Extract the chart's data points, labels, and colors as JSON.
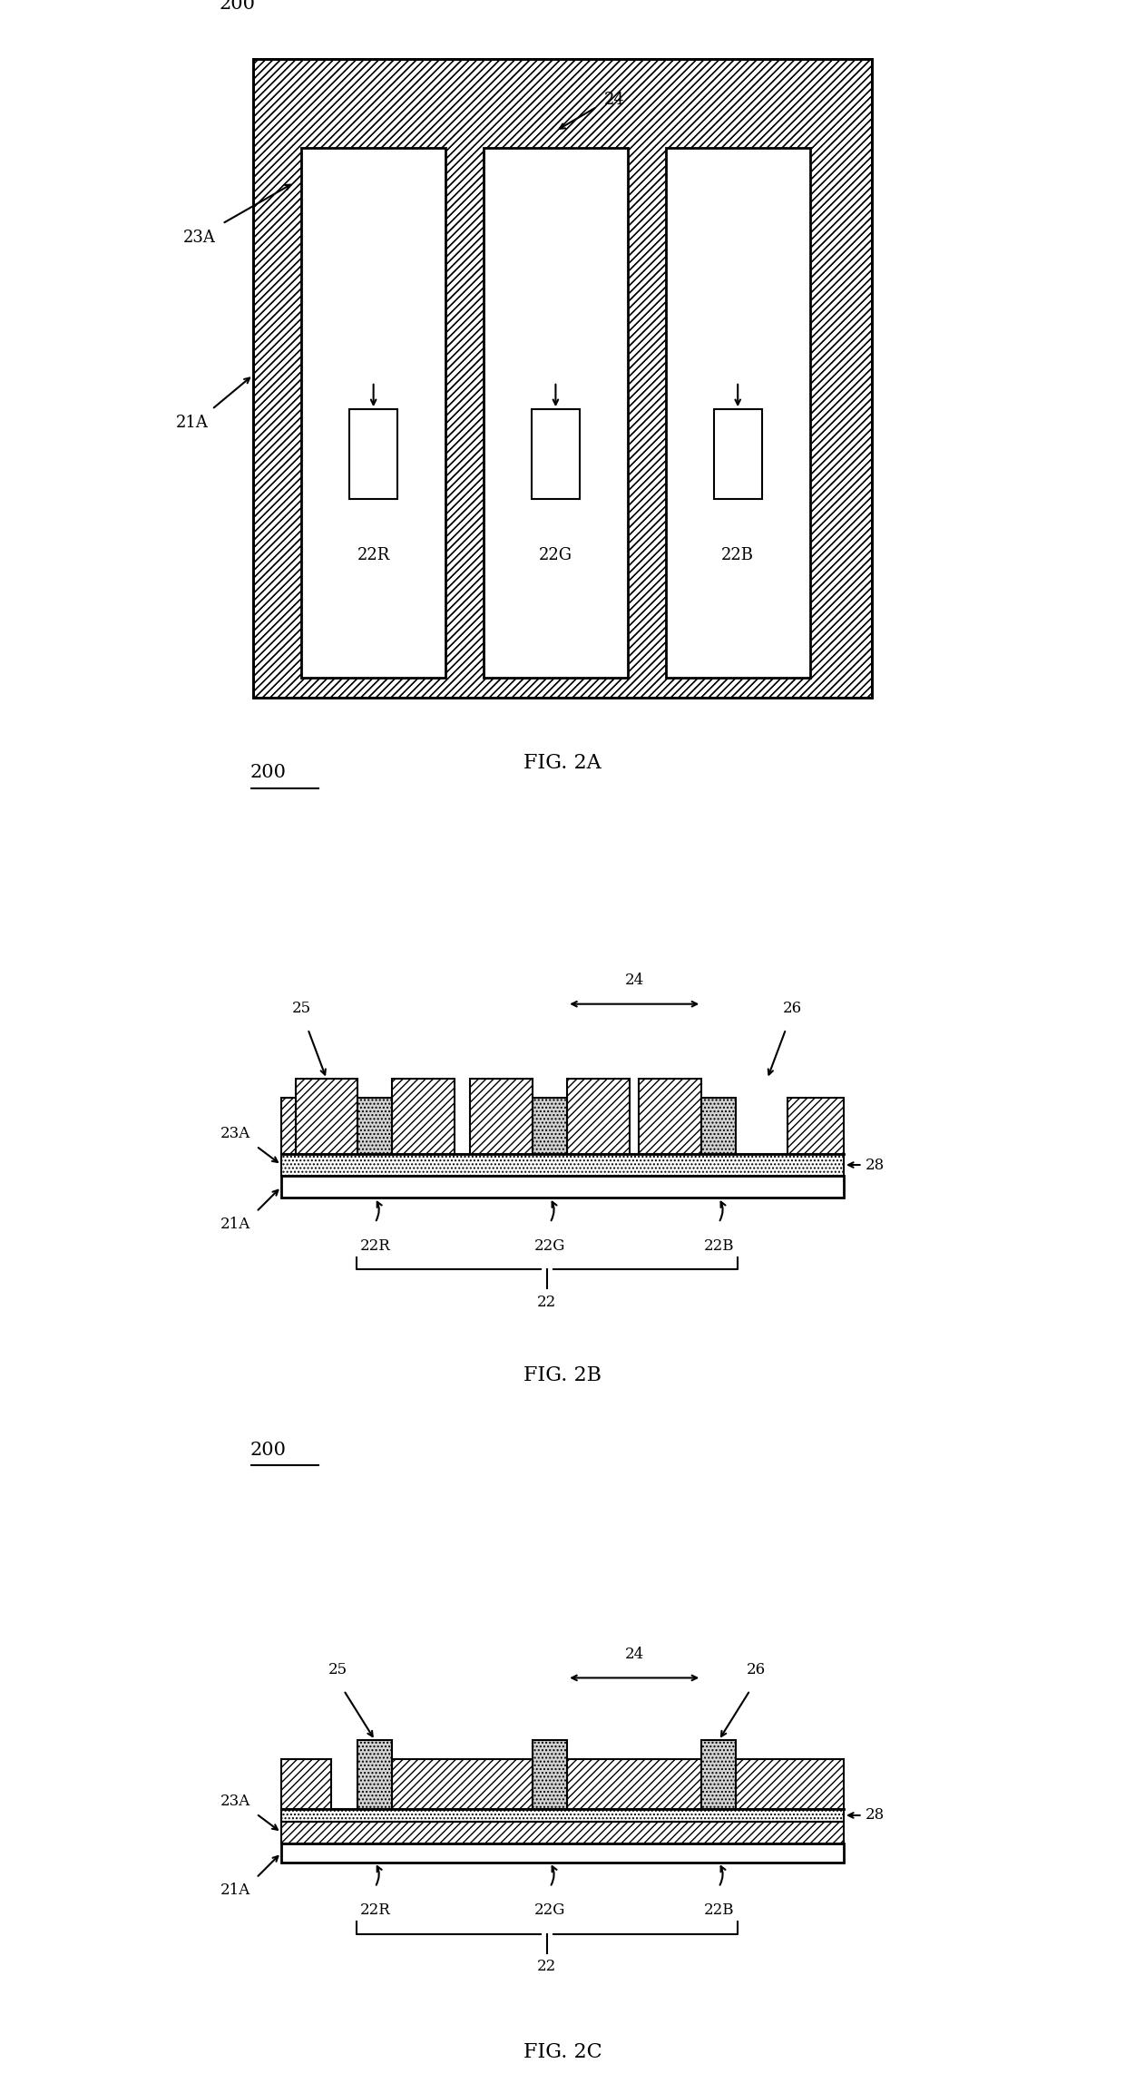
{
  "fig_width": 12.4,
  "fig_height": 22.96,
  "bg_color": "#ffffff",
  "line_color": "#000000",
  "hatch_color": "#000000",
  "fig_labels": [
    "FIG. 2A",
    "FIG. 2B",
    "FIG. 2C"
  ],
  "ref_200": "200",
  "ref_21A": "21A",
  "ref_22R": "22R",
  "ref_22G": "22G",
  "ref_22B": "22B",
  "ref_23A": "23A",
  "ref_24": "24",
  "ref_25": "25",
  "ref_26": "26",
  "ref_28": "28",
  "ref_22": "22"
}
